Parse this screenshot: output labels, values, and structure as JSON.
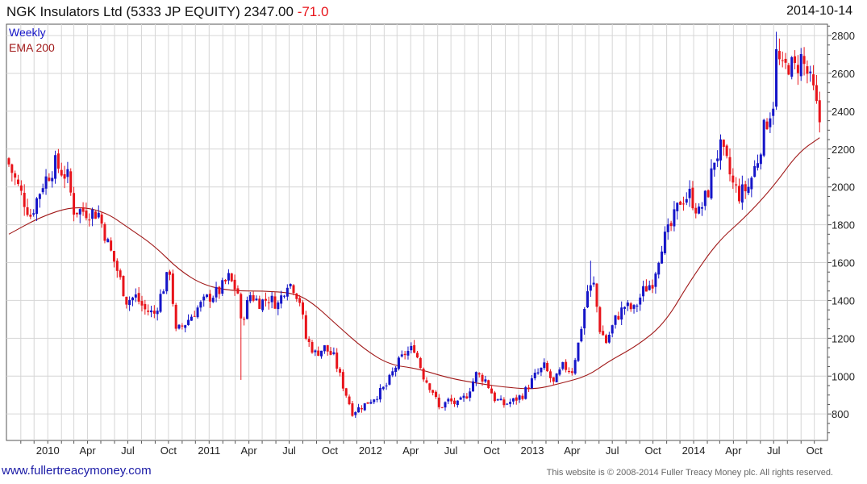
{
  "header": {
    "name": "NGK Insulators Ltd",
    "ticker": "(5333 JP EQUITY)",
    "price": "2347.00",
    "change": "-71.0",
    "date": "2014-10-14"
  },
  "footer": {
    "site": "www.fullertreacymoney.com",
    "copyright": "This website is © 2008-2014 Fuller Treacy Money plc. All rights reserved."
  },
  "colors": {
    "up": "#1515c8",
    "down": "#e8141b",
    "ema": "#a01818",
    "grid": "#d6d6d6"
  },
  "chart_data": {
    "type": "candlestick",
    "legend": [
      "Weekly",
      "EMA 200"
    ],
    "legend_placement": "top-left",
    "grid": true,
    "ylim": [
      660,
      2860
    ],
    "y_ticks": [
      800,
      1000,
      1200,
      1400,
      1600,
      1800,
      2000,
      2200,
      2400,
      2600,
      2800
    ],
    "x_ticks": [
      "2010",
      "Apr",
      "Jul",
      "Oct",
      "2011",
      "Apr",
      "Jul",
      "Oct",
      "2012",
      "Apr",
      "Jul",
      "Oct",
      "2013",
      "Apr",
      "Jul",
      "Oct",
      "2014",
      "Apr",
      "Jul",
      "Oct"
    ],
    "close_anchors": [
      [
        "2009-10-05",
        2120
      ],
      [
        "2009-10-26",
        2000
      ],
      [
        "2009-11-23",
        1850
      ],
      [
        "2009-12-21",
        2020
      ],
      [
        "2010-01-18",
        2120
      ],
      [
        "2010-02-15",
        2050
      ],
      [
        "2010-03-01",
        1880
      ],
      [
        "2010-03-29",
        1870
      ],
      [
        "2010-04-26",
        1860
      ],
      [
        "2010-05-17",
        1700
      ],
      [
        "2010-06-07",
        1560
      ],
      [
        "2010-06-28",
        1400
      ],
      [
        "2010-07-19",
        1420
      ],
      [
        "2010-08-09",
        1350
      ],
      [
        "2010-08-30",
        1330
      ],
      [
        "2010-09-20",
        1470
      ],
      [
        "2010-10-04",
        1560
      ],
      [
        "2010-10-18",
        1230
      ],
      [
        "2010-11-08",
        1280
      ],
      [
        "2010-12-06",
        1360
      ],
      [
        "2010-12-27",
        1410
      ],
      [
        "2011-01-24",
        1450
      ],
      [
        "2011-02-14",
        1520
      ],
      [
        "2011-03-07",
        1440
      ],
      [
        "2011-03-14",
        1280
      ],
      [
        "2011-04-04",
        1430
      ],
      [
        "2011-04-25",
        1390
      ],
      [
        "2011-05-16",
        1410
      ],
      [
        "2011-06-06",
        1380
      ],
      [
        "2011-06-27",
        1500
      ],
      [
        "2011-07-11",
        1470
      ],
      [
        "2011-07-25",
        1400
      ],
      [
        "2011-08-08",
        1200
      ],
      [
        "2011-08-29",
        1120
      ],
      [
        "2011-09-19",
        1150
      ],
      [
        "2011-10-10",
        1100
      ],
      [
        "2011-10-31",
        950
      ],
      [
        "2011-11-21",
        810
      ],
      [
        "2011-12-19",
        850
      ],
      [
        "2012-01-16",
        900
      ],
      [
        "2012-02-06",
        950
      ],
      [
        "2012-02-27",
        1050
      ],
      [
        "2012-03-19",
        1120
      ],
      [
        "2012-04-09",
        1150
      ],
      [
        "2012-04-30",
        1000
      ],
      [
        "2012-05-21",
        920
      ],
      [
        "2012-06-04",
        830
      ],
      [
        "2012-06-25",
        870
      ],
      [
        "2012-07-16",
        850
      ],
      [
        "2012-08-06",
        900
      ],
      [
        "2012-08-27",
        1010
      ],
      [
        "2012-09-17",
        980
      ],
      [
        "2012-10-08",
        880
      ],
      [
        "2012-10-29",
        850
      ],
      [
        "2012-11-19",
        870
      ],
      [
        "2012-12-10",
        900
      ],
      [
        "2013-01-07",
        1000
      ],
      [
        "2013-01-28",
        1050
      ],
      [
        "2013-02-18",
        960
      ],
      [
        "2013-03-11",
        1050
      ],
      [
        "2013-04-01",
        1030
      ],
      [
        "2013-04-15",
        1170
      ],
      [
        "2013-05-06",
        1450
      ],
      [
        "2013-05-20",
        1480
      ],
      [
        "2013-06-03",
        1250
      ],
      [
        "2013-06-17",
        1180
      ],
      [
        "2013-07-08",
        1300
      ],
      [
        "2013-07-29",
        1370
      ],
      [
        "2013-08-19",
        1350
      ],
      [
        "2013-09-09",
        1450
      ],
      [
        "2013-09-30",
        1500
      ],
      [
        "2013-10-21",
        1700
      ],
      [
        "2013-11-11",
        1790
      ],
      [
        "2013-12-02",
        1930
      ],
      [
        "2013-12-23",
        1960
      ],
      [
        "2014-01-13",
        1860
      ],
      [
        "2014-02-03",
        1980
      ],
      [
        "2014-02-17",
        2150
      ],
      [
        "2014-03-03",
        2200
      ],
      [
        "2014-03-17",
        2120
      ],
      [
        "2014-03-31",
        2010
      ],
      [
        "2014-04-14",
        1960
      ],
      [
        "2014-05-05",
        2000
      ],
      [
        "2014-05-26",
        2150
      ],
      [
        "2014-06-09",
        2300
      ],
      [
        "2014-06-30",
        2450
      ],
      [
        "2014-07-07",
        2700
      ],
      [
        "2014-07-21",
        2610
      ],
      [
        "2014-08-04",
        2650
      ],
      [
        "2014-08-18",
        2620
      ],
      [
        "2014-09-01",
        2680
      ],
      [
        "2014-09-15",
        2600
      ],
      [
        "2014-09-29",
        2500
      ],
      [
        "2014-10-06",
        2418
      ],
      [
        "2014-10-13",
        2347
      ]
    ],
    "spikes": [
      {
        "date": "2011-03-14",
        "low": 980
      },
      {
        "date": "2013-05-13",
        "high": 1610
      },
      {
        "date": "2014-07-07",
        "high": 2820
      }
    ],
    "ema200_anchors": [
      [
        "2009-10-05",
        1750
      ],
      [
        "2009-12-14",
        1840
      ],
      [
        "2010-03-01",
        1900
      ],
      [
        "2010-05-10",
        1870
      ],
      [
        "2010-07-05",
        1780
      ],
      [
        "2010-08-30",
        1690
      ],
      [
        "2010-10-25",
        1560
      ],
      [
        "2010-12-20",
        1480
      ],
      [
        "2011-02-21",
        1450
      ],
      [
        "2011-05-02",
        1450
      ],
      [
        "2011-07-11",
        1440
      ],
      [
        "2011-08-22",
        1390
      ],
      [
        "2011-10-17",
        1270
      ],
      [
        "2011-12-19",
        1140
      ],
      [
        "2012-02-13",
        1060
      ],
      [
        "2012-04-16",
        1040
      ],
      [
        "2012-06-25",
        990
      ],
      [
        "2012-09-03",
        960
      ],
      [
        "2012-11-05",
        940
      ],
      [
        "2013-01-07",
        930
      ],
      [
        "2013-03-04",
        960
      ],
      [
        "2013-05-06",
        1000
      ],
      [
        "2013-06-24",
        1080
      ],
      [
        "2013-08-26",
        1160
      ],
      [
        "2013-10-28",
        1280
      ],
      [
        "2013-12-23",
        1500
      ],
      [
        "2014-02-24",
        1710
      ],
      [
        "2014-04-28",
        1840
      ],
      [
        "2014-06-30",
        2000
      ],
      [
        "2014-08-25",
        2180
      ],
      [
        "2014-10-13",
        2260
      ]
    ]
  }
}
